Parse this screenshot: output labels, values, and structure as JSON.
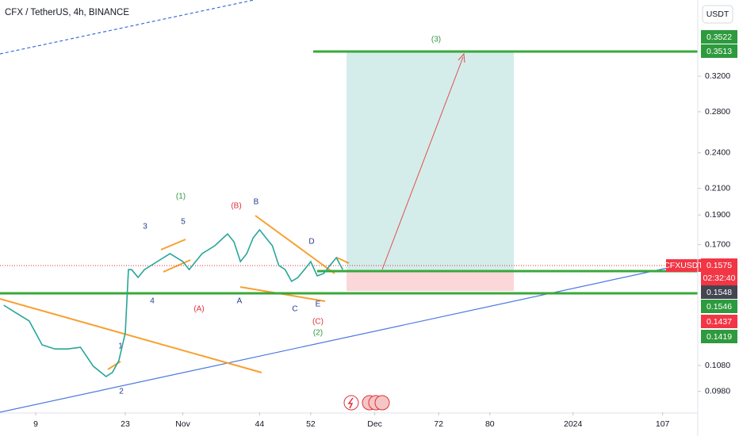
{
  "header": {
    "symbol": "CFX / TetherUS, 4h, BINANCE",
    "currency": "USDT"
  },
  "chart_data": {
    "type": "line",
    "log_scale": true,
    "grid": false,
    "color": "#26a69a",
    "x": [
      4,
      6,
      8,
      10,
      12,
      14,
      16,
      18,
      20,
      21,
      22,
      23,
      23.5,
      24,
      25,
      26,
      28,
      30,
      32,
      33,
      35,
      37,
      39,
      40,
      41,
      42,
      43,
      44,
      45,
      46,
      47,
      48,
      49,
      50,
      51,
      52,
      53,
      54,
      55,
      56,
      57
    ],
    "values": [
      0.1354,
      0.1314,
      0.1276,
      0.1167,
      0.1149,
      0.1149,
      0.1156,
      0.1077,
      0.1036,
      0.1052,
      0.11,
      0.122,
      0.1548,
      0.1548,
      0.1503,
      0.1548,
      0.1595,
      0.1643,
      0.1595,
      0.1548,
      0.1643,
      0.1693,
      0.177,
      0.1718,
      0.1595,
      0.1643,
      0.1744,
      0.1797,
      0.1744,
      0.1693,
      0.1572,
      0.1548,
      0.1481,
      0.1503,
      0.1548,
      0.1595,
      0.1512,
      0.1525,
      0.1572,
      0.1619,
      0.1548
    ],
    "xlim": [
      3.42,
      112.5
    ],
    "xticks": [
      9,
      23,
      {
        "value": 32,
        "label": "Nov"
      },
      44,
      52,
      {
        "value": 62,
        "label": "Dec"
      },
      72,
      80,
      {
        "value": 93,
        "label": "2024"
      },
      107
    ],
    "ylim": [
      0.0906,
      0.426
    ],
    "yticks": [
      {
        "value": 0.32,
        "label": "0.3200"
      },
      {
        "value": 0.28,
        "label": "0.2800"
      },
      {
        "value": 0.24,
        "label": "0.2400"
      },
      {
        "value": 0.21,
        "label": "0.2100"
      },
      {
        "value": 0.19,
        "label": "0.1900"
      },
      {
        "value": 0.17,
        "label": "0.1700"
      },
      {
        "value": 0.108,
        "label": "0.1080"
      },
      {
        "value": 0.098,
        "label": "0.0980"
      }
    ],
    "symbol_tag": "CFXUSDT",
    "price_tags": [
      "0.3522",
      "0.3513",
      "0.1575",
      "02:32:40",
      "0.1548",
      "0.1546",
      "0.1437",
      "0.1419"
    ],
    "annotations": [
      "(1)",
      "3",
      "5",
      "4",
      "(B)",
      "B",
      "(A)",
      "A",
      "C",
      "D",
      "E",
      "(C)",
      "(2)",
      "1",
      "2",
      "(3)"
    ]
  }
}
